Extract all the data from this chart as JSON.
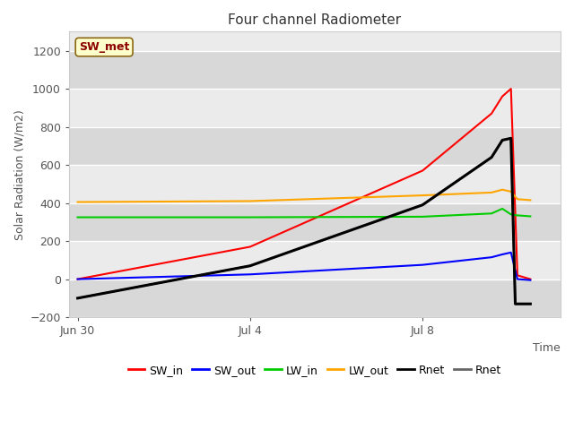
{
  "title": "Four channel Radiometer",
  "xlabel": "Time",
  "ylabel": "Solar Radiation (W/m2)",
  "annotation_text": "SW_met",
  "annotation_color": "#8B0000",
  "annotation_bg": "#FFFFCC",
  "annotation_border": "#8B6914",
  "ylim": [
    -200,
    1300
  ],
  "yticks": [
    -200,
    0,
    200,
    400,
    600,
    800,
    1000,
    1200
  ],
  "xlim_days": [
    -0.2,
    11.2
  ],
  "xtick_pos": [
    0,
    4,
    8
  ],
  "xtick_labels": [
    "Jun 30",
    "Jul 4",
    "Jul 8"
  ],
  "plot_bg_light": "#ebebeb",
  "plot_bg_dark": "#d8d8d8",
  "grid_color": "#ffffff",
  "series": {
    "SW_in": {
      "color": "#ff0000",
      "linewidth": 1.5
    },
    "SW_out": {
      "color": "#0000ff",
      "linewidth": 1.5
    },
    "LW_in": {
      "color": "#00cc00",
      "linewidth": 1.5
    },
    "LW_out": {
      "color": "#ffa500",
      "linewidth": 1.5
    },
    "Rnet_black": {
      "color": "#000000",
      "linewidth": 2.2
    },
    "Rnet_gray": {
      "color": "#666666",
      "linewidth": 1.5
    }
  },
  "legend_entries": [
    {
      "label": "SW_in",
      "color": "#ff0000"
    },
    {
      "label": "SW_out",
      "color": "#0000ff"
    },
    {
      "label": "LW_in",
      "color": "#00cc00"
    },
    {
      "label": "LW_out",
      "color": "#ffa500"
    },
    {
      "label": "Rnet",
      "color": "#000000"
    },
    {
      "label": "Rnet",
      "color": "#666666"
    }
  ],
  "SW_in_x": [
    0,
    4,
    8,
    9.6,
    9.85,
    10.05,
    10.2,
    10.5
  ],
  "SW_in_y": [
    0,
    170,
    570,
    870,
    960,
    1000,
    20,
    0
  ],
  "SW_out_x": [
    0,
    4,
    8,
    9.6,
    9.85,
    10.05,
    10.2,
    10.5
  ],
  "SW_out_y": [
    0,
    25,
    75,
    115,
    130,
    140,
    0,
    -5
  ],
  "LW_in_x": [
    0,
    4,
    8,
    9.6,
    9.85,
    10.05,
    10.2,
    10.5
  ],
  "LW_in_y": [
    325,
    325,
    328,
    345,
    370,
    340,
    335,
    330
  ],
  "LW_out_x": [
    0,
    4,
    8,
    9.6,
    9.85,
    10.05,
    10.2,
    10.5
  ],
  "LW_out_y": [
    405,
    410,
    440,
    455,
    470,
    460,
    420,
    415
  ],
  "Rnet_b_x": [
    0,
    4,
    8,
    9.6,
    9.85,
    10.05,
    10.15,
    10.5
  ],
  "Rnet_b_y": [
    -100,
    70,
    390,
    640,
    730,
    740,
    -130,
    -130
  ],
  "Rnet_g_x": [
    0,
    4,
    8,
    9.6,
    9.85,
    10.05,
    10.15,
    10.5
  ],
  "Rnet_g_y": [
    -100,
    70,
    390,
    640,
    730,
    740,
    -130,
    -130
  ]
}
